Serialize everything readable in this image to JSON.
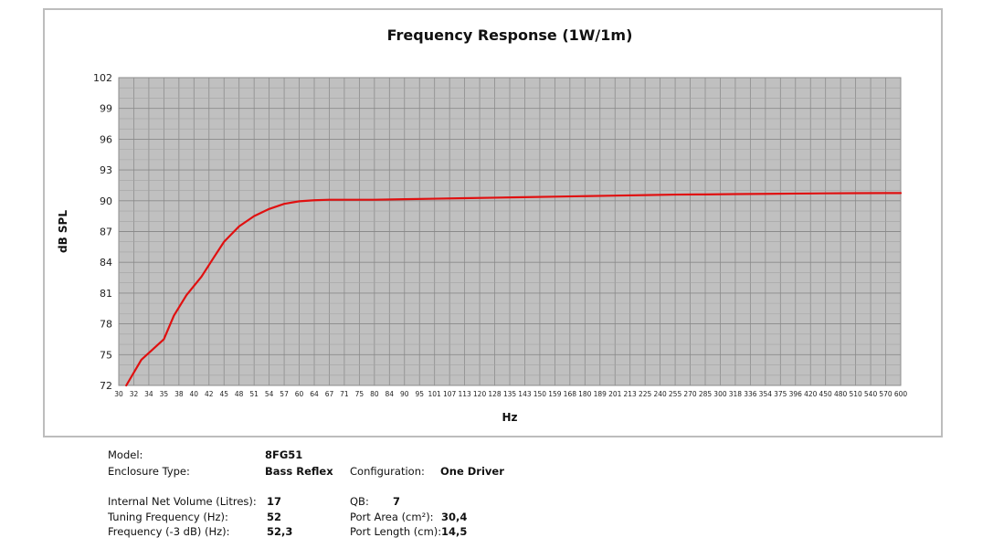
{
  "chart_data": {
    "type": "line",
    "title": "Frequency Response (1W/1m)",
    "xlabel": "Hz",
    "ylabel": "dB SPL",
    "x_ticks": [
      "30",
      "32",
      "34",
      "35",
      "38",
      "40",
      "42",
      "45",
      "48",
      "51",
      "54",
      "57",
      "60",
      "64",
      "67",
      "71",
      "75",
      "80",
      "84",
      "90",
      "95",
      "101",
      "107",
      "113",
      "120",
      "128",
      "135",
      "143",
      "150",
      "159",
      "168",
      "180",
      "189",
      "201",
      "213",
      "225",
      "240",
      "255",
      "270",
      "285",
      "300",
      "318",
      "336",
      "354",
      "375",
      "396",
      "420",
      "450",
      "480",
      "510",
      "540",
      "570",
      "600"
    ],
    "y_ticks": [
      72,
      75,
      78,
      81,
      84,
      87,
      90,
      93,
      96,
      99,
      102
    ],
    "ylim": [
      72,
      102
    ],
    "grid": true,
    "series": [
      {
        "color": "#e01010",
        "x": [
          31,
          33,
          35,
          37,
          39,
          41,
          43,
          45,
          48,
          51,
          54,
          57,
          60,
          64,
          67,
          71,
          75,
          80,
          90,
          101,
          113,
          128,
          143,
          159,
          180,
          201,
          225,
          255,
          285,
          318,
          354,
          396,
          450,
          510,
          570,
          600
        ],
        "y": [
          72.0,
          74.5,
          76.5,
          78.8,
          80.8,
          82.6,
          84.5,
          86.0,
          87.5,
          88.5,
          89.2,
          89.7,
          89.95,
          90.05,
          90.1,
          90.1,
          90.1,
          90.1,
          90.15,
          90.2,
          90.25,
          90.3,
          90.35,
          90.4,
          90.45,
          90.5,
          90.55,
          90.6,
          90.62,
          90.65,
          90.67,
          90.7,
          90.72,
          90.74,
          90.75,
          90.75
        ]
      }
    ]
  },
  "specs": {
    "model_label": "Model:",
    "model_value": "8FG51",
    "enclosure_label": "Enclosure Type:",
    "enclosure_value": "Bass Reflex",
    "configuration_label": "Configuration:",
    "configuration_value": "One Driver",
    "volume_label": "Internal  Net Volume (Litres):",
    "volume_value": "17",
    "qb_label": "QB:",
    "qb_value": "7",
    "tuning_label": "Tuning Frequency (Hz):",
    "tuning_value": "52",
    "port_area_label": "Port Area (cm²):",
    "port_area_value": "30,4",
    "f3_label": "Frequency (-3 dB) (Hz):",
    "f3_value": "52,3",
    "port_length_label": "Port Length (cm):",
    "port_length_value": "14,5"
  }
}
